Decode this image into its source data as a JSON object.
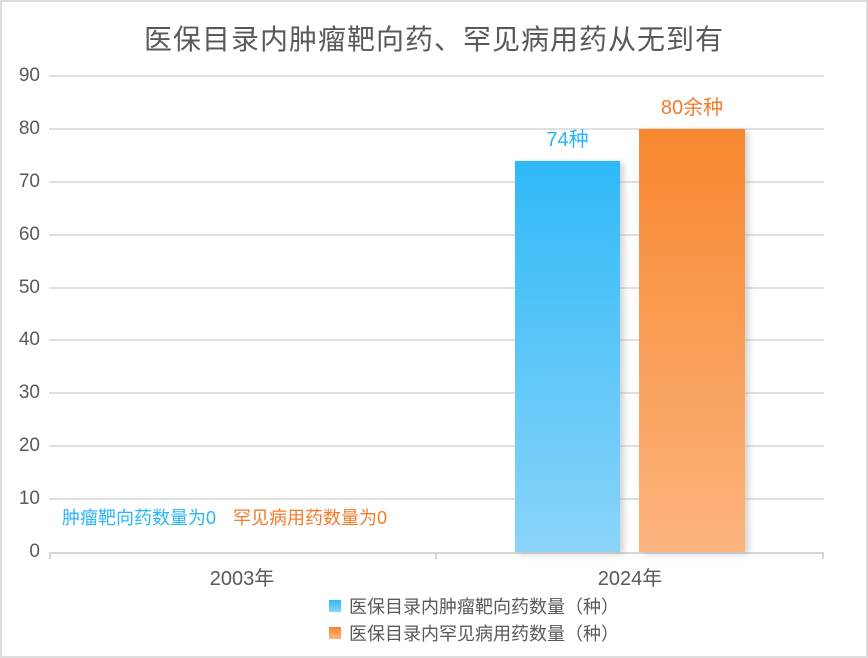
{
  "frame": {
    "background": "#ffffff",
    "border_color": "#dcdcdc"
  },
  "chart_data": {
    "type": "bar",
    "title": "医保目录内肿瘤靶向药、罕见病用药从无到有",
    "title_color": "#595959",
    "categories": [
      "2003年",
      "2024年"
    ],
    "series": [
      {
        "name": "医保目录内肿瘤靶向药数量（种）",
        "values": [
          0,
          74
        ],
        "data_labels": [
          "肿瘤靶向药数量为0",
          "74种"
        ],
        "color_top": "#2fb9f8",
        "color_bottom": "#8ad4f9",
        "label_color": "#29b6f6"
      },
      {
        "name": "医保目录内罕见病用药数量（种）",
        "values": [
          0,
          80
        ],
        "data_labels": [
          "罕见病用药数量为0",
          "80余种"
        ],
        "color_top": "#f8872f",
        "color_bottom": "#fcb47e",
        "label_color": "#f57b28"
      }
    ],
    "ylim": [
      0,
      90
    ],
    "yticks": [
      0,
      10,
      20,
      30,
      40,
      50,
      60,
      70,
      80,
      90
    ],
    "grid": true,
    "gridline_color": "#e0e0e0",
    "axis_text_color": "#595959",
    "legend_position": "bottom"
  }
}
